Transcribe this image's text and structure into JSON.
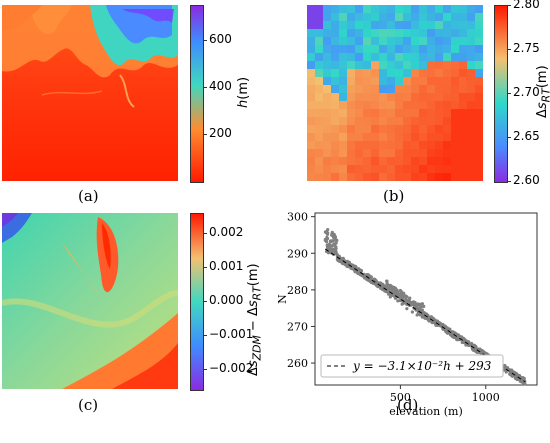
{
  "panels": {
    "a": {
      "caption": "(a)",
      "cbar_label": "h(m)",
      "cbar_ticks": [
        "600",
        "400",
        "200"
      ],
      "cbar_values": [
        600,
        400,
        200
      ],
      "cbar_range": [
        0,
        750
      ],
      "colors": [
        "#ff2a00",
        "#ff7a2a",
        "#2fd0c8",
        "#4da0ff",
        "#7a3cff"
      ]
    },
    "b": {
      "caption": "(b)",
      "cbar_label": "ΔsRT(m)",
      "cbar_ticks": [
        "2.80",
        "2.75",
        "2.70",
        "2.65",
        "2.60"
      ],
      "cbar_values": [
        2.8,
        2.75,
        2.7,
        2.65,
        2.6
      ],
      "cbar_range": [
        2.6,
        2.8
      ]
    },
    "c": {
      "caption": "(c)",
      "cbar_label": "ΔsZDM − ΔsRT(m)",
      "cbar_ticks": [
        "0.002",
        "0.001",
        "0.000",
        "−0.001",
        "−0.002"
      ],
      "cbar_values": [
        0.002,
        0.001,
        0.0,
        -0.001,
        -0.002
      ],
      "cbar_range": [
        -0.0026,
        0.0026
      ]
    },
    "d": {
      "caption": "(d)"
    }
  },
  "chart_data": {
    "type": "scatter",
    "xlabel": "elevation (m)",
    "ylabel": "N",
    "xlim": [
      0,
      1300
    ],
    "ylim": [
      254,
      301
    ],
    "xticks": [
      500,
      1000
    ],
    "yticks": [
      260,
      270,
      280,
      290,
      300
    ],
    "xtick_labels": [
      "500",
      "1000"
    ],
    "ytick_labels": [
      "260",
      "270",
      "280",
      "290",
      "300"
    ],
    "legend": "y = −3.1×10⁻²h + 293",
    "fit": {
      "slope": -0.031,
      "intercept": 293
    },
    "point_color": "#808080"
  }
}
